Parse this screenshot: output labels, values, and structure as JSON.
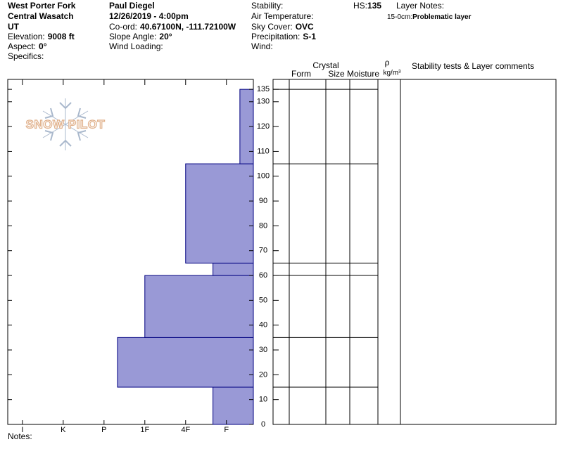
{
  "header": {
    "location": "West Porter Fork",
    "range": "Central Wasatch",
    "state": "UT",
    "elevation_label": "Elevation:",
    "elevation": "9008 ft",
    "aspect_label": "Aspect:",
    "aspect": "0°",
    "specifics_label": "Specifics:",
    "observer": "Paul Diegel",
    "datetime": "12/26/2019 - 4:00pm",
    "coord_label": "Co-ord:",
    "coord": "40.67100N, -111.72100W",
    "slope_label": "Slope Angle:",
    "slope": "20°",
    "wind_loading_label": "Wind Loading:",
    "stability_label": "Stability:",
    "air_temp_label": "Air Temperature:",
    "sky_label": "Sky Cover:",
    "sky": "OVC",
    "precip_label": "Precipitation:",
    "precip": "S-1",
    "wind_label": "Wind:",
    "hs_label": "HS:",
    "hs": "135",
    "layer_notes_label": "Layer Notes:",
    "layer_note_range": "15-0cm:",
    "layer_note": "Problematic layer"
  },
  "logo": "SNOW PILOT",
  "table_headers": {
    "crystal": "Crystal",
    "form": "Form",
    "size": "Size",
    "moisture": "Moisture",
    "rho": "ρ",
    "density_unit": "kg/m³",
    "comments": "Stability tests & Layer comments"
  },
  "notes_label": "Notes:",
  "chart_data": {
    "type": "bar",
    "orientation": "horizontal",
    "color": "#9999d6",
    "edge_color": "#000080",
    "layers": [
      {
        "bottom": 0,
        "top": 15,
        "hardness": 1.33
      },
      {
        "bottom": 15,
        "top": 35,
        "hardness": 3.67
      },
      {
        "bottom": 35,
        "top": 60,
        "hardness": 3
      },
      {
        "bottom": 60,
        "top": 65,
        "hardness": 1.33
      },
      {
        "bottom": 65,
        "top": 105,
        "hardness": 2
      },
      {
        "bottom": 105,
        "top": 135,
        "hardness": 0.67
      }
    ],
    "xlim": [
      6.36,
      0.34
    ],
    "xticks": [
      {
        "value": 6,
        "label": "I"
      },
      {
        "value": 5,
        "label": "K"
      },
      {
        "value": 4,
        "label": "P"
      },
      {
        "value": 3,
        "label": "1F"
      },
      {
        "value": 2,
        "label": "4F"
      },
      {
        "value": 1,
        "label": "F"
      }
    ],
    "ylim": [
      0,
      139
    ],
    "yticks": [
      0,
      10,
      20,
      30,
      40,
      50,
      60,
      70,
      80,
      90,
      100,
      110,
      120,
      130,
      135
    ]
  }
}
